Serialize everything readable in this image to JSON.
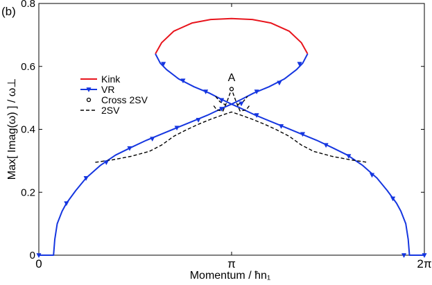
{
  "panel_label": "(b)",
  "chart_data": {
    "type": "line",
    "xlabel": "Momentum / ħn₁",
    "ylabel": "Max[ Imag(ω) ] / ω⊥",
    "xlim": [
      0,
      6.2832
    ],
    "ylim": [
      0,
      0.8
    ],
    "x_ticks": [
      {
        "value": 0,
        "label": "0"
      },
      {
        "value": 3.1416,
        "label": "π"
      },
      {
        "value": 6.2832,
        "label": "2π"
      }
    ],
    "y_ticks": [
      {
        "value": 0,
        "label": "0"
      },
      {
        "value": 0.2,
        "label": "0.2"
      },
      {
        "value": 0.4,
        "label": "0.4"
      },
      {
        "value": 0.6,
        "label": "0.6"
      },
      {
        "value": 0.8,
        "label": "0.8"
      }
    ],
    "grid": false,
    "legend_position": "left",
    "annotations": [
      {
        "text": "A",
        "x": 3.1416,
        "y": 0.56
      }
    ],
    "series": [
      {
        "name": "Kink",
        "color": "#e8141c",
        "style": "solid",
        "marker": "none",
        "points": [
          [
            1.9,
            0.64
          ],
          [
            2.0,
            0.675
          ],
          [
            2.2,
            0.712
          ],
          [
            2.5,
            0.738
          ],
          [
            2.8,
            0.749
          ],
          [
            3.14,
            0.752
          ],
          [
            3.48,
            0.749
          ],
          [
            3.78,
            0.738
          ],
          [
            4.08,
            0.712
          ],
          [
            4.28,
            0.675
          ],
          [
            4.38,
            0.64
          ]
        ]
      },
      {
        "name": "VR",
        "color": "#1536e0",
        "style": "solid",
        "marker": "triangle-down",
        "branches": [
          [
            [
              0.0,
              0.0
            ],
            [
              0.24,
              0.0
            ],
            [
              0.26,
              0.05
            ],
            [
              0.3,
              0.1
            ],
            [
              0.38,
              0.14
            ],
            [
              0.45,
              0.165
            ],
            [
              0.6,
              0.205
            ],
            [
              0.77,
              0.245
            ],
            [
              1.0,
              0.285
            ],
            [
              1.25,
              0.318
            ],
            [
              1.5,
              0.342
            ],
            [
              1.75,
              0.365
            ],
            [
              2.0,
              0.385
            ],
            [
              2.25,
              0.405
            ],
            [
              2.5,
              0.425
            ],
            [
              2.75,
              0.445
            ],
            [
              3.0,
              0.468
            ],
            [
              3.14,
              0.48
            ],
            [
              3.3,
              0.495
            ],
            [
              3.5,
              0.515
            ],
            [
              3.75,
              0.535
            ],
            [
              4.0,
              0.56
            ],
            [
              4.2,
              0.59
            ],
            [
              4.3,
              0.61
            ],
            [
              4.38,
              0.64
            ]
          ],
          [
            [
              1.9,
              0.64
            ],
            [
              1.98,
              0.61
            ],
            [
              2.08,
              0.59
            ],
            [
              2.28,
              0.56
            ],
            [
              2.53,
              0.535
            ],
            [
              2.78,
              0.515
            ],
            [
              2.98,
              0.495
            ],
            [
              3.14,
              0.48
            ],
            [
              3.28,
              0.468
            ],
            [
              3.53,
              0.445
            ],
            [
              3.78,
              0.425
            ],
            [
              4.03,
              0.405
            ],
            [
              4.28,
              0.385
            ],
            [
              4.53,
              0.365
            ],
            [
              4.78,
              0.342
            ],
            [
              5.03,
              0.318
            ],
            [
              5.28,
              0.285
            ],
            [
              5.51,
              0.245
            ],
            [
              5.68,
              0.205
            ],
            [
              5.83,
              0.165
            ],
            [
              5.9,
              0.14
            ],
            [
              5.98,
              0.1
            ],
            [
              6.02,
              0.05
            ],
            [
              6.04,
              0.0
            ],
            [
              6.2832,
              0.0
            ]
          ]
        ],
        "marker_points": [
          [
            0.0,
            0.0
          ],
          [
            0.45,
            0.165
          ],
          [
            0.77,
            0.245
          ],
          [
            1.1,
            0.295
          ],
          [
            1.48,
            0.34
          ],
          [
            1.85,
            0.37
          ],
          [
            2.25,
            0.405
          ],
          [
            2.6,
            0.43
          ],
          [
            2.98,
            0.465
          ],
          [
            3.3,
            0.482
          ],
          [
            2.03,
            0.608
          ],
          [
            2.35,
            0.555
          ],
          [
            2.72,
            0.52
          ],
          [
            2.98,
            0.493
          ],
          [
            3.55,
            0.445
          ],
          [
            3.95,
            0.41
          ],
          [
            4.3,
            0.385
          ],
          [
            4.68,
            0.35
          ],
          [
            5.05,
            0.315
          ],
          [
            5.43,
            0.255
          ],
          [
            5.77,
            0.18
          ],
          [
            5.95,
            0.0
          ],
          [
            6.2832,
            0.0
          ],
          [
            3.55,
            0.52
          ],
          [
            3.92,
            0.548
          ],
          [
            4.25,
            0.608
          ]
        ]
      },
      {
        "name": "Cross 2SV",
        "color": "#000000",
        "style": "none",
        "marker": "circle-open",
        "points": [
          [
            3.1416,
            0.528
          ]
        ]
      },
      {
        "name": "2SV",
        "color": "#000000",
        "style": "dashed",
        "marker": "none",
        "branches": [
          [
            [
              0.92,
              0.295
            ],
            [
              1.2,
              0.303
            ],
            [
              1.5,
              0.314
            ],
            [
              1.8,
              0.33
            ],
            [
              2.0,
              0.35
            ],
            [
              2.2,
              0.378
            ],
            [
              2.4,
              0.398
            ],
            [
              2.6,
              0.416
            ],
            [
              2.8,
              0.432
            ],
            [
              3.0,
              0.446
            ],
            [
              3.14,
              0.455
            ],
            [
              3.28,
              0.446
            ],
            [
              3.48,
              0.432
            ],
            [
              3.68,
              0.416
            ],
            [
              3.88,
              0.398
            ],
            [
              4.08,
              0.378
            ],
            [
              4.28,
              0.35
            ],
            [
              4.48,
              0.33
            ],
            [
              4.78,
              0.314
            ],
            [
              5.08,
              0.303
            ],
            [
              5.36,
              0.295
            ]
          ],
          [
            [
              2.85,
              0.475
            ],
            [
              2.9,
              0.462
            ],
            [
              3.0,
              0.458
            ],
            [
              3.07,
              0.49
            ],
            [
              3.14,
              0.528
            ],
            [
              3.21,
              0.49
            ],
            [
              3.28,
              0.458
            ],
            [
              3.38,
              0.462
            ],
            [
              3.43,
              0.475
            ]
          ],
          [
            [
              2.88,
              0.505
            ],
            [
              2.95,
              0.488
            ],
            [
              3.04,
              0.478
            ]
          ],
          [
            [
              3.24,
              0.478
            ],
            [
              3.33,
              0.488
            ],
            [
              3.4,
              0.505
            ]
          ]
        ]
      }
    ]
  }
}
